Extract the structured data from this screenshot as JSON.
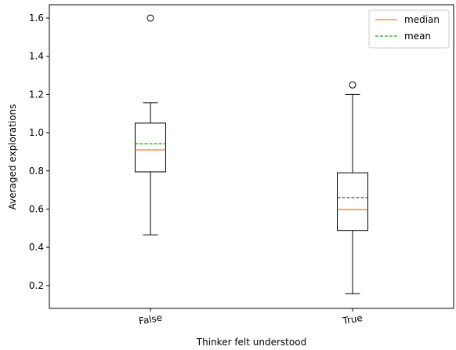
{
  "chart_data": {
    "type": "box",
    "xlabel": "Thinker felt understood",
    "ylabel": "Averaged explorations",
    "categories": [
      "False",
      "True"
    ],
    "ylim": [
      0.08,
      1.67
    ],
    "yticks": [
      0.2,
      0.4,
      0.6,
      0.8,
      1.0,
      1.2,
      1.4,
      1.6
    ],
    "ytick_labels": [
      "0.2",
      "0.4",
      "0.6",
      "0.8",
      "1.0",
      "1.2",
      "1.4",
      "1.6"
    ],
    "boxes": [
      {
        "category": "False",
        "whisker_low": 0.465,
        "q1": 0.795,
        "median": 0.91,
        "mean": 0.942,
        "q3": 1.05,
        "whisker_high": 1.157,
        "outliers": [
          1.6
        ]
      },
      {
        "category": "True",
        "whisker_low": 0.157,
        "q1": 0.488,
        "median": 0.598,
        "mean": 0.66,
        "q3": 0.79,
        "whisker_high": 1.2,
        "outliers": [
          1.25
        ]
      }
    ],
    "legend": {
      "position": "upper right",
      "entries": [
        {
          "label": "median",
          "color": "#ff7f0e",
          "style": "solid"
        },
        {
          "label": "mean",
          "color": "#2ca02c",
          "style": "dashed"
        }
      ]
    },
    "colors": {
      "median": "#ff7f0e",
      "mean": "#2ca02c",
      "box": "#000000"
    },
    "grid": false
  }
}
